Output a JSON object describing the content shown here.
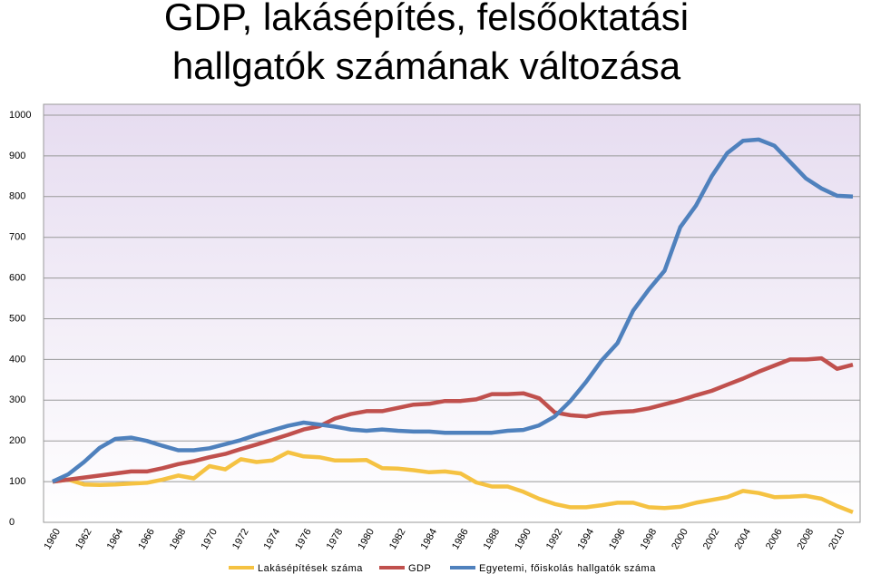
{
  "chart_data": {
    "type": "line",
    "title": [
      "GDP, lakásépítés, felsőoktatási",
      "hallgatók számának változása"
    ],
    "categories": [
      "1960",
      null,
      "1962",
      null,
      "1964",
      null,
      "1966",
      null,
      "1968",
      null,
      "1970",
      null,
      "1972",
      null,
      "1974",
      null,
      "1976",
      null,
      "1978",
      null,
      "1980",
      null,
      "1982",
      null,
      "1984",
      null,
      "1986",
      null,
      "1988",
      null,
      "1990",
      null,
      "1992",
      null,
      "1994",
      null,
      "1996",
      null,
      "1998",
      null,
      "2000",
      null,
      "2002",
      null,
      "2004",
      null,
      "2006",
      null,
      "2008",
      null,
      "2010",
      null
    ],
    "series": [
      {
        "name": "Lakásépítések száma",
        "color": "#f5c242",
        "values": [
          100,
          105,
          93,
          92,
          93,
          95,
          97,
          105,
          115,
          108,
          138,
          130,
          155,
          148,
          152,
          172,
          162,
          160,
          152,
          152,
          153,
          133,
          132,
          128,
          123,
          125,
          120,
          98,
          88,
          88,
          75,
          58,
          45,
          37,
          37,
          42,
          48,
          48,
          37,
          35,
          38,
          48,
          55,
          62,
          77,
          72,
          62,
          63,
          65,
          58,
          40,
          25
        ]
      },
      {
        "name": "GDP",
        "color": "#c0504d",
        "values": [
          100,
          105,
          110,
          115,
          120,
          125,
          125,
          133,
          143,
          150,
          160,
          168,
          180,
          191,
          203,
          215,
          228,
          236,
          255,
          266,
          273,
          273,
          281,
          289,
          291,
          298,
          298,
          302,
          315,
          315,
          317,
          305,
          270,
          263,
          260,
          268,
          271,
          273,
          280,
          290,
          300,
          312,
          323,
          338,
          353,
          370,
          385,
          400,
          400,
          403,
          377,
          387
        ]
      },
      {
        "name": "Egyetemi, főiskolás hallgatók száma",
        "color": "#4f81bd",
        "values": [
          100,
          118,
          148,
          183,
          205,
          208,
          200,
          188,
          177,
          177,
          182,
          192,
          202,
          215,
          226,
          237,
          245,
          240,
          235,
          228,
          225,
          228,
          225,
          223,
          223,
          220,
          220,
          220,
          220,
          225,
          227,
          238,
          260,
          298,
          345,
          398,
          440,
          520,
          572,
          618,
          725,
          778,
          850,
          907,
          937,
          940,
          925,
          885,
          845,
          820,
          802,
          800
        ]
      }
    ],
    "ylim": [
      0,
      1000
    ],
    "yticks": [
      0,
      100,
      200,
      300,
      400,
      500,
      600,
      700,
      800,
      900,
      1000
    ],
    "grid": true,
    "legend": "bottom"
  }
}
